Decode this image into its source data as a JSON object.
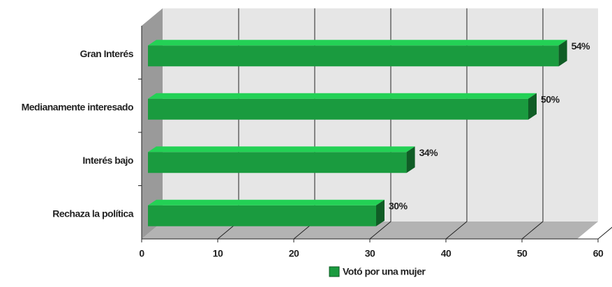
{
  "chart_data": {
    "type": "bar3d_horizontal",
    "categories": [
      "Gran Interés",
      "Medianamente interesado",
      "Interés bajo",
      "Rechaza la política"
    ],
    "series": [
      {
        "name": "Votó por una mujer",
        "color": "#1a9b3f",
        "values": [
          54,
          50,
          34,
          30
        ],
        "value_labels": [
          "54%",
          "50%",
          "34%",
          "30%"
        ]
      }
    ],
    "xlim": [
      0,
      60
    ],
    "xticks": [
      0,
      10,
      20,
      30,
      40,
      50,
      60
    ],
    "grid": true
  }
}
